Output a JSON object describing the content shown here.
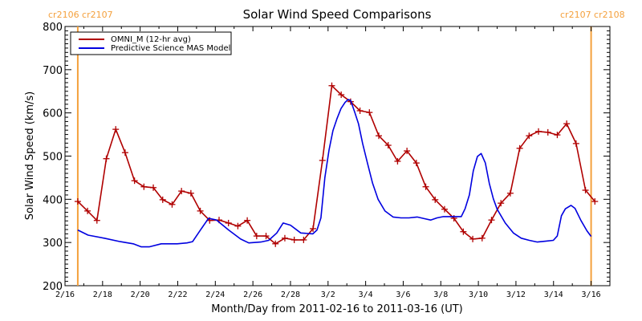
{
  "chart_data": {
    "type": "line",
    "title": "Solar Wind Speed Comparisons",
    "xlabel": "Month/Day from 2011-02-16 to 2011-03-16 (UT)",
    "ylabel": "Solar Wind Speed (km/s)",
    "x_units": "days since 2011-02-16",
    "xlim": [
      0,
      29
    ],
    "ylim": [
      200,
      800
    ],
    "x_ticks": [
      {
        "day": 0,
        "label": "2/16"
      },
      {
        "day": 2,
        "label": "2/18"
      },
      {
        "day": 4,
        "label": "2/20"
      },
      {
        "day": 6,
        "label": "2/22"
      },
      {
        "day": 8,
        "label": "2/24"
      },
      {
        "day": 10,
        "label": "2/26"
      },
      {
        "day": 12,
        "label": "2/28"
      },
      {
        "day": 14,
        "label": "3/2"
      },
      {
        "day": 16,
        "label": "3/4"
      },
      {
        "day": 18,
        "label": "3/6"
      },
      {
        "day": 20,
        "label": "3/8"
      },
      {
        "day": 22,
        "label": "3/10"
      },
      {
        "day": 24,
        "label": "3/12"
      },
      {
        "day": 26,
        "label": "3/14"
      },
      {
        "day": 28,
        "label": "3/16"
      }
    ],
    "y_ticks": [
      200,
      300,
      400,
      500,
      600,
      700,
      800
    ],
    "grid": false,
    "legend_position": "top-left",
    "vertical_markers": [
      {
        "day": 0.68,
        "label": "cr2106 cr2107",
        "color": "#f4a03c"
      },
      {
        "day": 28.0,
        "label": "cr2107 cr2108",
        "color": "#f4a03c"
      }
    ],
    "series": [
      {
        "name": "OMNI_M (12-hr avg)",
        "color": "#b00000",
        "markers": true,
        "x": [
          0.68,
          1.2,
          1.7,
          2.2,
          2.7,
          3.2,
          3.7,
          4.2,
          4.7,
          5.2,
          5.7,
          6.2,
          6.7,
          7.2,
          7.7,
          8.2,
          8.7,
          9.2,
          9.7,
          10.2,
          10.7,
          11.2,
          11.7,
          12.2,
          12.7,
          13.2,
          13.7,
          14.2,
          14.7,
          15.2,
          15.7,
          16.2,
          16.7,
          17.2,
          17.7,
          18.2,
          18.7,
          19.2,
          19.7,
          20.2,
          20.7,
          21.2,
          21.7,
          22.2,
          22.7,
          23.2,
          23.7,
          24.2,
          24.7,
          25.2,
          25.7,
          26.2,
          26.7,
          27.2,
          27.7,
          28.2
        ],
        "values": [
          395,
          373,
          351,
          494,
          562,
          508,
          443,
          429,
          427,
          399,
          388,
          419,
          414,
          373,
          351,
          352,
          345,
          338,
          351,
          315,
          315,
          297,
          310,
          306,
          306,
          332,
          490,
          663,
          642,
          626,
          605,
          601,
          547,
          525,
          488,
          512,
          484,
          429,
          399,
          377,
          356,
          325,
          308,
          310,
          352,
          391,
          414,
          518,
          547,
          557,
          555,
          549,
          575,
          529,
          421,
          395
        ]
      },
      {
        "name": "Predictive Science MAS Model",
        "color": "#0000e0",
        "markers": false,
        "x": [
          0.68,
          1.23,
          2.09,
          2.94,
          3.63,
          4.06,
          4.48,
          5.12,
          5.97,
          6.49,
          6.79,
          7.21,
          7.64,
          8.07,
          8.71,
          9.35,
          9.78,
          10.42,
          10.84,
          11.27,
          11.61,
          12.0,
          12.55,
          13.19,
          13.41,
          13.62,
          13.83,
          14.05,
          14.26,
          14.47,
          14.69,
          14.9,
          15.07,
          15.2,
          15.41,
          15.62,
          15.84,
          16.1,
          16.37,
          16.66,
          17.03,
          17.46,
          17.88,
          18.31,
          18.74,
          19.16,
          19.46,
          19.8,
          20.14,
          20.48,
          21.09,
          21.29,
          21.52,
          21.73,
          21.95,
          22.15,
          22.37,
          22.58,
          22.8,
          23.0,
          23.43,
          23.86,
          24.28,
          24.71,
          25.14,
          25.56,
          25.99,
          26.2,
          26.42,
          26.63,
          26.93,
          27.14,
          27.46,
          27.78,
          28.0
        ],
        "values": [
          329,
          317,
          310,
          302,
          297,
          290,
          290,
          297,
          297,
          299,
          302,
          329,
          356,
          352,
          329,
          308,
          299,
          301,
          305,
          322,
          345,
          340,
          322,
          320,
          329,
          357,
          450,
          514,
          559,
          586,
          610,
          624,
          631,
          629,
          603,
          575,
          529,
          483,
          437,
          400,
          373,
          359,
          357,
          357,
          359,
          355,
          352,
          357,
          360,
          360,
          360,
          378,
          410,
          466,
          499,
          506,
          484,
          437,
          401,
          377,
          345,
          322,
          310,
          305,
          301,
          303,
          305,
          315,
          362,
          378,
          386,
          379,
          351,
          327,
          314
        ]
      }
    ]
  }
}
